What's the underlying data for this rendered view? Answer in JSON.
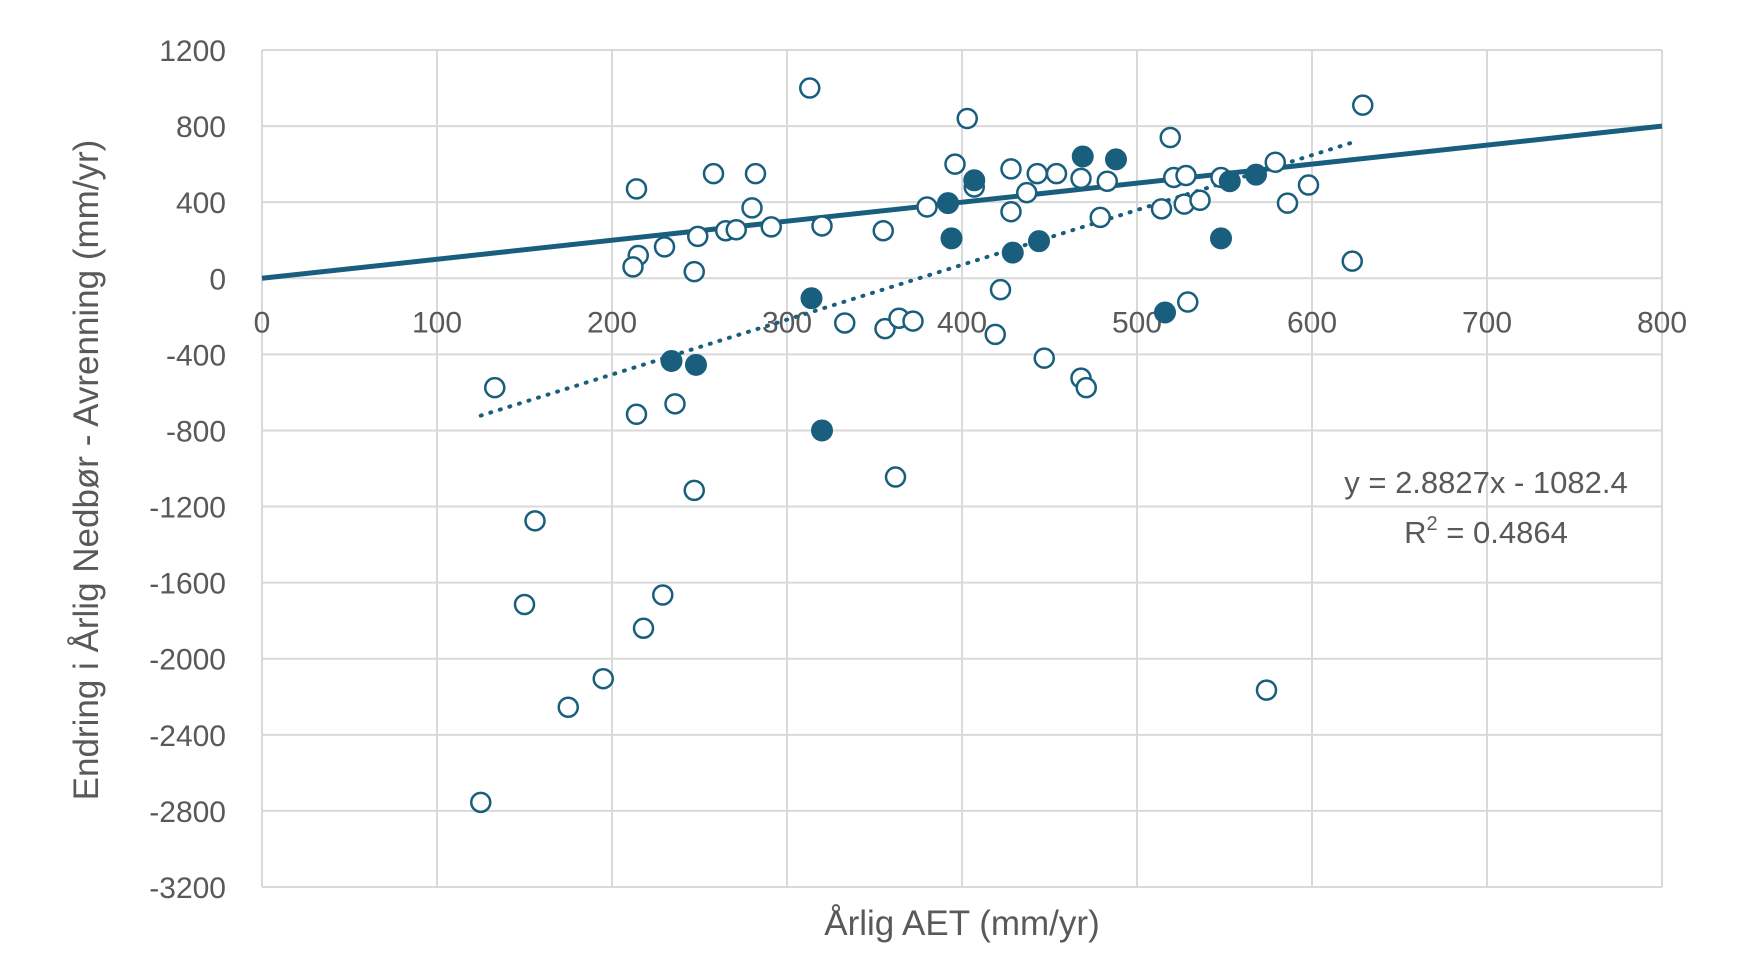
{
  "chart_data": {
    "type": "scatter",
    "xlabel": "Årlig AET (mm/yr)",
    "ylabel": "Endring i Årlig Nedbør - Avrenning (mm/yr)",
    "xlim": [
      0,
      800
    ],
    "ylim": [
      -3200,
      1200
    ],
    "x_ticks": [
      "0",
      "100",
      "200",
      "300",
      "400",
      "500",
      "600",
      "700",
      "800"
    ],
    "y_ticks": [
      "1200",
      "800",
      "400",
      "0",
      "-400",
      "-800",
      "-1200",
      "-1600",
      "-2000",
      "-2400",
      "-2800",
      "-3200"
    ],
    "grid": true,
    "colors": {
      "marker": "#1a5e7e",
      "grid": "#d9d9d9",
      "text": "#595959"
    },
    "series": [
      {
        "marker": "open-circle",
        "points": [
          [
            313,
            1000
          ],
          [
            403,
            840
          ],
          [
            629,
            910
          ],
          [
            519,
            740
          ],
          [
            214,
            470
          ],
          [
            258,
            550
          ],
          [
            282,
            550
          ],
          [
            396,
            600
          ],
          [
            428,
            575
          ],
          [
            443,
            550
          ],
          [
            454,
            550
          ],
          [
            468,
            525
          ],
          [
            483,
            510
          ],
          [
            521,
            530
          ],
          [
            528,
            540
          ],
          [
            548,
            530
          ],
          [
            579,
            610
          ],
          [
            598,
            490
          ],
          [
            407,
            480
          ],
          [
            437,
            450
          ],
          [
            280,
            370
          ],
          [
            380,
            375
          ],
          [
            428,
            350
          ],
          [
            479,
            320
          ],
          [
            514,
            365
          ],
          [
            527,
            390
          ],
          [
            536,
            410
          ],
          [
            586,
            395
          ],
          [
            215,
            120
          ],
          [
            212,
            60
          ],
          [
            230,
            165
          ],
          [
            249,
            220
          ],
          [
            265,
            250
          ],
          [
            271,
            255
          ],
          [
            291,
            270
          ],
          [
            320,
            275
          ],
          [
            355,
            250
          ],
          [
            247,
            35
          ],
          [
            623,
            90
          ],
          [
            422,
            -60
          ],
          [
            529,
            -125
          ],
          [
            333,
            -235
          ],
          [
            356,
            -265
          ],
          [
            364,
            -210
          ],
          [
            372,
            -225
          ],
          [
            419,
            -295
          ],
          [
            447,
            -420
          ],
          [
            468,
            -525
          ],
          [
            471,
            -575
          ],
          [
            133,
            -575
          ],
          [
            214,
            -715
          ],
          [
            236,
            -660
          ],
          [
            247,
            -1115
          ],
          [
            362,
            -1045
          ],
          [
            156,
            -1275
          ],
          [
            150,
            -1715
          ],
          [
            229,
            -1665
          ],
          [
            218,
            -1840
          ],
          [
            195,
            -2105
          ],
          [
            175,
            -2255
          ],
          [
            574,
            -2165
          ],
          [
            125,
            -2755
          ]
        ]
      },
      {
        "marker": "filled-circle",
        "points": [
          [
            469,
            640
          ],
          [
            488,
            625
          ],
          [
            407,
            515
          ],
          [
            392,
            395
          ],
          [
            553,
            510
          ],
          [
            568,
            545
          ],
          [
            394,
            210
          ],
          [
            548,
            210
          ],
          [
            429,
            135
          ],
          [
            444,
            195
          ],
          [
            314,
            -105
          ],
          [
            516,
            -180
          ],
          [
            234,
            -435
          ],
          [
            248,
            -455
          ],
          [
            320,
            -800
          ]
        ]
      }
    ],
    "lines": [
      {
        "style": "solid",
        "slope": 1,
        "intercept": 0,
        "x_range": [
          0,
          800
        ]
      },
      {
        "style": "dotted",
        "slope": 2.8827,
        "intercept": -1082.4,
        "x_range": [
          125,
          625
        ]
      }
    ],
    "annotations": {
      "equation": "y = 2.8827x - 1082.4",
      "r2_label": "R",
      "r2_exp": "2",
      "r2_value": " = 0.4864"
    }
  }
}
